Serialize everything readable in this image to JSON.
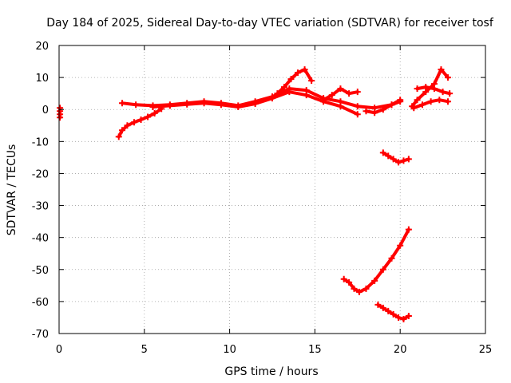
{
  "chart_data": {
    "type": "scatter",
    "title": "Day 184 of 2025, Sidereal Day-to-day VTEC variation (SDTVAR) for receiver tosf",
    "xlabel": "GPS time / hours",
    "ylabel": "SDTVAR / TECUs",
    "xlim": [
      0,
      25
    ],
    "ylim": [
      -70,
      20
    ],
    "xticks": [
      "0",
      "5",
      "10",
      "15",
      "20",
      "25"
    ],
    "xtick_values": [
      0,
      5,
      10,
      15,
      20,
      25
    ],
    "yticks": [
      "20",
      "10",
      "0",
      "-10",
      "-20",
      "-30",
      "-40",
      "-50",
      "-60",
      "-70"
    ],
    "ytick_values": [
      20,
      10,
      0,
      -10,
      -20,
      -30,
      -40,
      -50,
      -60,
      -70
    ],
    "grid": true,
    "marker": "plus",
    "color": "#ff0000",
    "series": [
      {
        "name": "arc-start",
        "x": [
          0.05,
          0.05,
          0.05,
          0.05
        ],
        "y": [
          0.5,
          -0.5,
          -1.5,
          -2.5
        ]
      },
      {
        "name": "rise-3.5",
        "x": [
          3.5,
          3.7,
          4.0,
          4.4,
          4.8,
          5.2,
          5.6,
          6.0
        ],
        "y": [
          -8.5,
          -6.5,
          -5.0,
          -4.0,
          -3.2,
          -2.3,
          -1.2,
          0.2
        ]
      },
      {
        "name": "main-upper",
        "x": [
          3.7,
          4.5,
          5.5,
          6.5,
          7.5,
          8.5,
          9.5,
          10.5,
          11.5,
          12.5,
          13.5,
          14.5,
          15.5,
          16.5,
          17.5,
          18.5,
          19.5,
          20.0
        ],
        "y": [
          2.0,
          1.5,
          1.2,
          1.5,
          2.0,
          2.5,
          2.0,
          1.2,
          2.5,
          4.0,
          6.5,
          6.0,
          3.5,
          2.5,
          1.0,
          0.5,
          1.5,
          3.0
        ]
      },
      {
        "name": "main-lower",
        "x": [
          5.5,
          6.5,
          7.5,
          8.5,
          9.5,
          10.5,
          11.5,
          12.5,
          13.5,
          14.5,
          15.5,
          16.5,
          17.5
        ],
        "y": [
          0.8,
          1.2,
          1.6,
          2.0,
          1.5,
          0.8,
          1.8,
          3.5,
          5.5,
          4.5,
          2.5,
          1.0,
          -1.5
        ]
      },
      {
        "name": "peak-13-14",
        "x": [
          12.8,
          13.2,
          13.6,
          14.0,
          14.4,
          14.8
        ],
        "y": [
          5.0,
          7.0,
          9.5,
          11.5,
          12.5,
          9.0
        ]
      },
      {
        "name": "arc-16-17",
        "x": [
          15.5,
          16.0,
          16.5,
          17.0,
          17.5
        ],
        "y": [
          3.0,
          4.5,
          6.5,
          5.0,
          5.5
        ]
      },
      {
        "name": "arc-18-20",
        "x": [
          18.0,
          18.5,
          19.0,
          19.5,
          20.0
        ],
        "y": [
          -0.5,
          -1.0,
          0.0,
          1.5,
          2.5
        ]
      },
      {
        "name": "arc-minus15",
        "x": [
          19.0,
          19.3,
          19.6,
          19.9,
          20.2,
          20.5
        ],
        "y": [
          -13.5,
          -14.5,
          -15.5,
          -16.5,
          -16.0,
          -15.5
        ]
      },
      {
        "name": "arc-minus55",
        "x": [
          16.7,
          17.0,
          17.3,
          17.6,
          18.0,
          18.5,
          19.0,
          19.5,
          20.0,
          20.5
        ],
        "y": [
          -53.0,
          -54.0,
          -56.0,
          -57.0,
          -56.0,
          -53.5,
          -50.0,
          -46.5,
          -42.5,
          -37.5
        ]
      },
      {
        "name": "arc-minus63",
        "x": [
          18.7,
          19.0,
          19.3,
          19.6,
          19.9,
          20.2,
          20.5
        ],
        "y": [
          -61.0,
          -62.0,
          -63.0,
          -64.0,
          -65.0,
          -65.5,
          -64.5
        ]
      },
      {
        "name": "arc-21-23-a",
        "x": [
          20.7,
          21.0,
          21.5,
          22.0,
          22.4,
          22.8
        ],
        "y": [
          1.0,
          3.0,
          5.5,
          8.0,
          12.5,
          10.0
        ]
      },
      {
        "name": "arc-21-23-b",
        "x": [
          20.8,
          21.3,
          21.8,
          22.3,
          22.8
        ],
        "y": [
          0.5,
          1.5,
          2.5,
          3.0,
          2.5
        ]
      },
      {
        "name": "arc-21-23-c",
        "x": [
          21.0,
          21.5,
          22.0,
          22.5,
          22.9
        ],
        "y": [
          6.5,
          7.0,
          6.5,
          5.5,
          5.0
        ]
      }
    ]
  }
}
